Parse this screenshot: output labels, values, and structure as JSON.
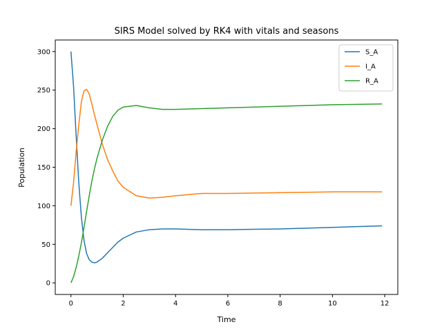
{
  "chart_data": {
    "type": "line",
    "title": "SIRS Model solved by RK4 with vitals and seasons",
    "xlabel": "Time",
    "ylabel": "Population",
    "xlim": [
      -0.6,
      12.5
    ],
    "ylim": [
      -15,
      315
    ],
    "xticks": [
      0,
      2,
      4,
      6,
      8,
      10,
      12
    ],
    "yticks": [
      0,
      50,
      100,
      150,
      200,
      250,
      300
    ],
    "grid": false,
    "legend_position": "top-right",
    "series": [
      {
        "name": "S_A",
        "color": "#1f77b4",
        "x": [
          0,
          0.1,
          0.2,
          0.3,
          0.4,
          0.5,
          0.6,
          0.7,
          0.8,
          0.9,
          1.0,
          1.2,
          1.4,
          1.6,
          1.8,
          2.0,
          2.5,
          3.0,
          3.5,
          4.0,
          5.0,
          6.0,
          8.0,
          10.0,
          11.9
        ],
        "y": [
          300,
          255,
          190,
          130,
          85,
          55,
          38,
          30,
          27,
          26,
          27,
          32,
          39,
          46,
          53,
          58,
          66,
          69,
          70,
          70,
          69,
          69,
          70,
          72,
          74
        ]
      },
      {
        "name": "I_A",
        "color": "#ff7f0e",
        "x": [
          0,
          0.1,
          0.2,
          0.3,
          0.4,
          0.5,
          0.6,
          0.7,
          0.8,
          0.9,
          1.0,
          1.2,
          1.4,
          1.6,
          1.8,
          2.0,
          2.5,
          3.0,
          3.5,
          4.0,
          5.0,
          6.0,
          8.0,
          10.0,
          11.9
        ],
        "y": [
          100,
          130,
          170,
          205,
          235,
          249,
          251,
          245,
          232,
          218,
          205,
          180,
          160,
          145,
          132,
          124,
          113,
          110,
          111,
          113,
          116,
          116,
          117,
          118,
          118
        ]
      },
      {
        "name": "R_A",
        "color": "#2ca02c",
        "x": [
          0,
          0.1,
          0.2,
          0.3,
          0.4,
          0.5,
          0.6,
          0.7,
          0.8,
          0.9,
          1.0,
          1.2,
          1.4,
          1.6,
          1.8,
          2.0,
          2.5,
          3.0,
          3.5,
          4.0,
          5.0,
          6.0,
          8.0,
          10.0,
          11.9
        ],
        "y": [
          0,
          8,
          20,
          35,
          52,
          72,
          93,
          113,
          132,
          148,
          162,
          185,
          203,
          216,
          224,
          228,
          230,
          227,
          225,
          225,
          226,
          227,
          229,
          231,
          232
        ]
      }
    ]
  }
}
